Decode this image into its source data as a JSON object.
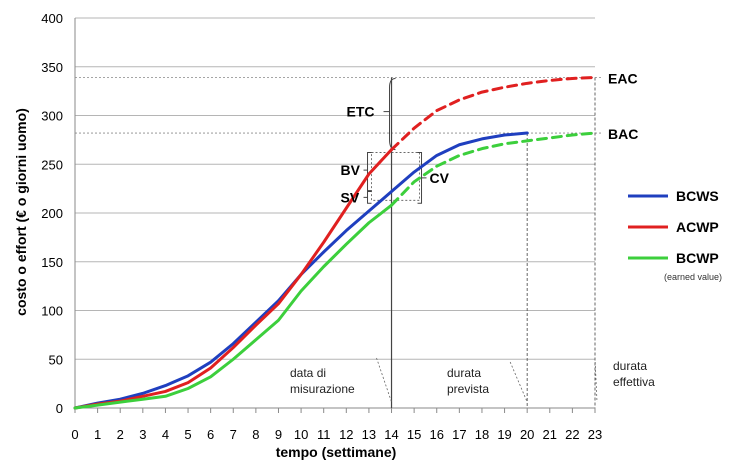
{
  "chart_data": {
    "type": "line",
    "xlabel": "tempo (settimane)",
    "ylabel": "costo o effort  (€ o giorni uomo)",
    "xlim": [
      0,
      23
    ],
    "ylim": [
      0,
      400
    ],
    "x_ticks": [
      0,
      1,
      2,
      3,
      4,
      5,
      6,
      7,
      8,
      9,
      10,
      11,
      12,
      13,
      14,
      15,
      16,
      17,
      18,
      19,
      20,
      21,
      22,
      23
    ],
    "y_ticks": [
      0,
      50,
      100,
      150,
      200,
      250,
      300,
      350,
      400
    ],
    "grid": "horizontal",
    "legend_position": "right",
    "series": [
      {
        "name": "BCWS",
        "color": "#1f3fbf",
        "style": "solid",
        "x": [
          0,
          1,
          2,
          3,
          4,
          5,
          6,
          7,
          8,
          9,
          10,
          11,
          12,
          13,
          14,
          15,
          16,
          17,
          18,
          19,
          20
        ],
        "values": [
          0,
          5,
          9,
          15,
          23,
          33,
          47,
          66,
          88,
          110,
          137,
          160,
          182,
          202,
          222,
          242,
          259,
          270,
          276,
          280,
          282
        ]
      },
      {
        "name": "ACWP",
        "color": "#e02020",
        "style": "solid",
        "x": [
          0,
          1,
          2,
          3,
          4,
          5,
          6,
          7,
          8,
          9,
          10,
          11,
          12,
          13,
          14
        ],
        "values": [
          0,
          4,
          7,
          12,
          17,
          26,
          41,
          62,
          85,
          107,
          137,
          170,
          205,
          240,
          265
        ]
      },
      {
        "name": "ACWP-forecast",
        "color": "#e02020",
        "style": "dashed",
        "x": [
          14,
          15,
          16,
          17,
          18,
          19,
          20,
          21,
          22,
          23
        ],
        "values": [
          265,
          287,
          305,
          316,
          324,
          329,
          333,
          336,
          338,
          339
        ]
      },
      {
        "name": "BCWP",
        "color": "#3ccf3c",
        "style": "solid",
        "x": [
          0,
          1,
          2,
          3,
          4,
          5,
          6,
          7,
          8,
          9,
          10,
          11,
          12,
          13,
          14
        ],
        "values": [
          0,
          3,
          6,
          9,
          12,
          20,
          32,
          50,
          70,
          90,
          120,
          145,
          168,
          190,
          208
        ]
      },
      {
        "name": "BCWP-forecast",
        "color": "#3ccf3c",
        "style": "dashed",
        "x": [
          14,
          15,
          16,
          17,
          18,
          19,
          20,
          21,
          22,
          23
        ],
        "values": [
          208,
          232,
          248,
          259,
          266,
          271,
          274,
          277,
          280,
          282
        ]
      }
    ],
    "legend": [
      {
        "label": "BCWS",
        "color": "#1f3fbf"
      },
      {
        "label": "ACWP",
        "color": "#e02020"
      },
      {
        "label": "BCWP",
        "color": "#3ccf3c",
        "sub": "(earned value)"
      }
    ],
    "reference_lines": {
      "eac": 339,
      "bac": 282,
      "date_measure": 14,
      "planned_duration": 20,
      "actual_duration": 23
    },
    "annotations": {
      "eac": "EAC",
      "bac": "BAC",
      "etc": "ETC",
      "bv": "BV",
      "sv": "SV",
      "cv": "CV",
      "date_measure": [
        "data di",
        "misurazione"
      ],
      "planned_duration": [
        "durata",
        "prevista"
      ],
      "actual_duration": [
        "durata",
        "effettiva"
      ]
    }
  }
}
